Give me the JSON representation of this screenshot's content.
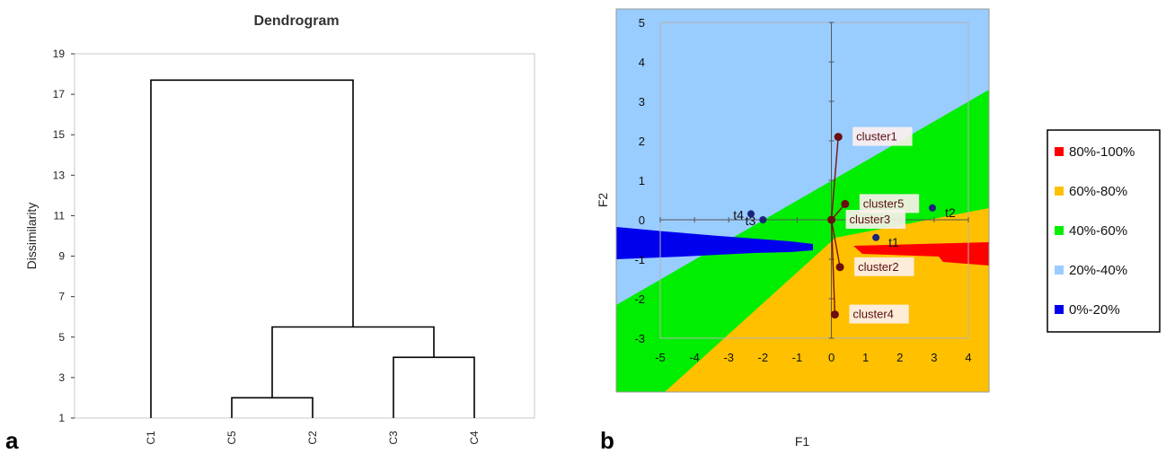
{
  "panel_labels": {
    "a": "a",
    "b": "b"
  },
  "chart_data": [
    {
      "type": "dendrogram",
      "title": "Dendrogram",
      "ylabel": "Dissimilarity",
      "ylim": [
        1,
        19
      ],
      "yticks": [
        1,
        3,
        5,
        7,
        9,
        11,
        13,
        15,
        17,
        19
      ],
      "leaves": [
        "C1",
        "C5",
        "C2",
        "C3",
        "C4"
      ],
      "merges": [
        {
          "left": "C5",
          "right": "C2",
          "height": 2.0
        },
        {
          "left": "C3",
          "right": "C4",
          "height": 4.0
        },
        {
          "left": "C5+C2",
          "right": "C3+C4",
          "height": 5.5
        },
        {
          "left": "C1",
          "right": "C5+C2+C3+C4",
          "height": 17.7
        }
      ]
    },
    {
      "type": "scatter",
      "xlabel": "F1",
      "ylabel": "F2",
      "xlim": [
        -5,
        4
      ],
      "ylim": [
        -3,
        5
      ],
      "xticks": [
        -5,
        -4,
        -3,
        -2,
        -1,
        0,
        1,
        2,
        3,
        4
      ],
      "yticks": [
        -3,
        -2,
        -1,
        0,
        1,
        2,
        3,
        4,
        5
      ],
      "clusters": [
        {
          "label": "cluster1",
          "x": 0.2,
          "y": 2.1
        },
        {
          "label": "cluster5",
          "x": 0.4,
          "y": 0.4
        },
        {
          "label": "cluster3",
          "x": 0.0,
          "y": 0.0
        },
        {
          "label": "cluster2",
          "x": 0.25,
          "y": -1.2
        },
        {
          "label": "cluster4",
          "x": 0.1,
          "y": -2.4
        }
      ],
      "points": [
        {
          "label": "t1",
          "x": 1.3,
          "y": -0.45
        },
        {
          "label": "t2",
          "x": 2.95,
          "y": 0.3
        },
        {
          "label": "t3",
          "x": -2.0,
          "y": 0.0
        },
        {
          "label": "t4",
          "x": -2.35,
          "y": 0.15
        }
      ],
      "legend": {
        "position": "right",
        "entries": [
          {
            "label": "80%-100%",
            "color": "#ff0000"
          },
          {
            "label": "60%-80%",
            "color": "#ffc000"
          },
          {
            "label": "40%-60%",
            "color": "#00ee00"
          },
          {
            "label": "20%-40%",
            "color": "#99ccff"
          },
          {
            "label": "0%-20%",
            "color": "#0000ee"
          }
        ]
      }
    }
  ]
}
